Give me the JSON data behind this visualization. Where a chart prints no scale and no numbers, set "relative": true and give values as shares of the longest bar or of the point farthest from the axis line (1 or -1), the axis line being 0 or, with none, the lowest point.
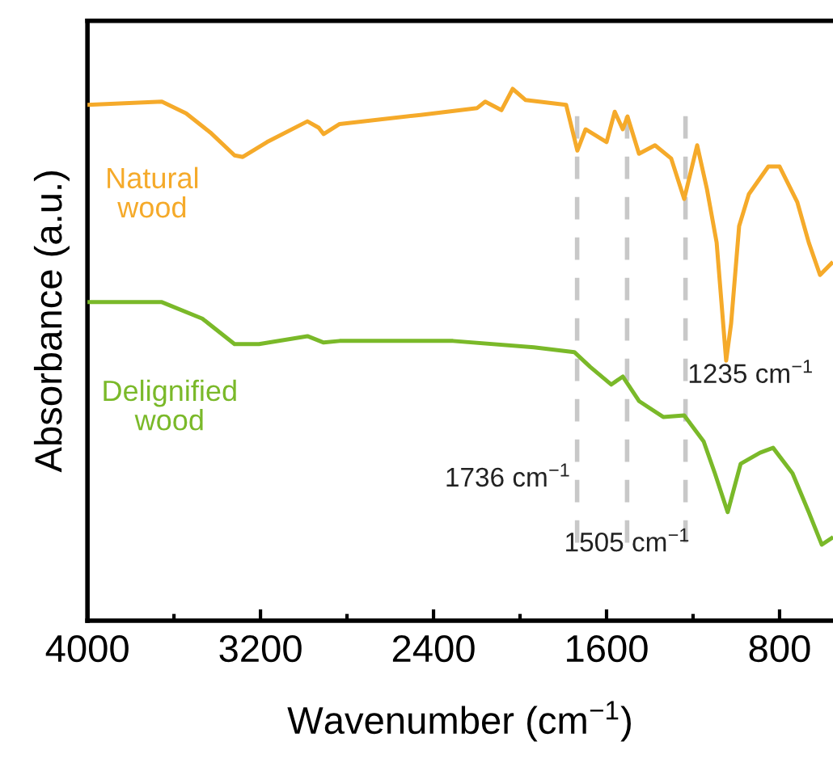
{
  "chart_data": {
    "type": "line",
    "relative": true,
    "xlabel": "Wavenumber (cm$^{−1}$)",
    "ylabel": "Absorbance (a.u.)",
    "xlim": [
      4000,
      553
    ],
    "xticks": [
      4000,
      {
        "value": 3600,
        "label": null
      },
      3200,
      {
        "value": 2800,
        "label": null
      },
      2400,
      {
        "value": 2000,
        "label": null
      },
      1600,
      {
        "value": 1200,
        "label": null
      },
      800
    ],
    "tick_labels": "x",
    "grid": false,
    "legend": false,
    "marker": "none",
    "line_style": "solid",
    "series": [
      {
        "name": "Natural wood",
        "color": "#f5aa2a",
        "x": [
          4000,
          3656,
          3544,
          3432,
          3320,
          3282,
          3170,
          2983,
          2931,
          2908,
          2834,
          2460,
          2198,
          2161,
          2086,
          2034,
          1974,
          1787,
          1735,
          1697,
          1600,
          1562,
          1525,
          1503,
          1450,
          1376,
          1301,
          1241,
          1181,
          1136,
          1091,
          1047,
          1024,
          987,
          942,
          852,
          800,
          718,
          665,
          613,
          560
        ],
        "values": [
          0.97,
          0.976,
          0.954,
          0.918,
          0.875,
          0.872,
          0.9,
          0.939,
          0.927,
          0.915,
          0.934,
          0.951,
          0.964,
          0.976,
          0.96,
          1.0,
          0.979,
          0.97,
          0.884,
          0.924,
          0.9,
          0.957,
          0.924,
          0.948,
          0.878,
          0.894,
          0.869,
          0.793,
          0.894,
          0.812,
          0.711,
          0.489,
          0.559,
          0.742,
          0.802,
          0.854,
          0.854,
          0.787,
          0.711,
          0.65,
          0.672
        ]
      },
      {
        "name": "Delignified wood",
        "color": "#7ab929",
        "x": [
          4000,
          3656,
          3469,
          3320,
          3207,
          2983,
          2908,
          2834,
          2310,
          1936,
          1749,
          1675,
          1578,
          1525,
          1450,
          1338,
          1241,
          1151,
          1099,
          1040,
          980,
          890,
          830,
          740,
          665,
          605,
          560
        ],
        "values": [
          0.599,
          0.599,
          0.568,
          0.52,
          0.52,
          0.535,
          0.523,
          0.526,
          0.526,
          0.514,
          0.505,
          0.477,
          0.444,
          0.459,
          0.413,
          0.383,
          0.386,
          0.337,
          0.277,
          0.204,
          0.295,
          0.316,
          0.325,
          0.277,
          0.204,
          0.143,
          0.155
        ]
      }
    ],
    "ref_lines": [
      {
        "axis": "x",
        "value": 1736,
        "label": "1736 cm$^{−1}$",
        "color": "#c8c8c8",
        "line_style": "dashed"
      },
      {
        "axis": "x",
        "value": 1505,
        "label": "1505 cm$^{−1}$",
        "color": "#c8c8c8",
        "line_style": "dashed"
      },
      {
        "axis": "x",
        "value": 1235,
        "label": "1235 cm$^{−1}$",
        "color": "#c8c8c8",
        "line_style": "dashed"
      }
    ]
  }
}
